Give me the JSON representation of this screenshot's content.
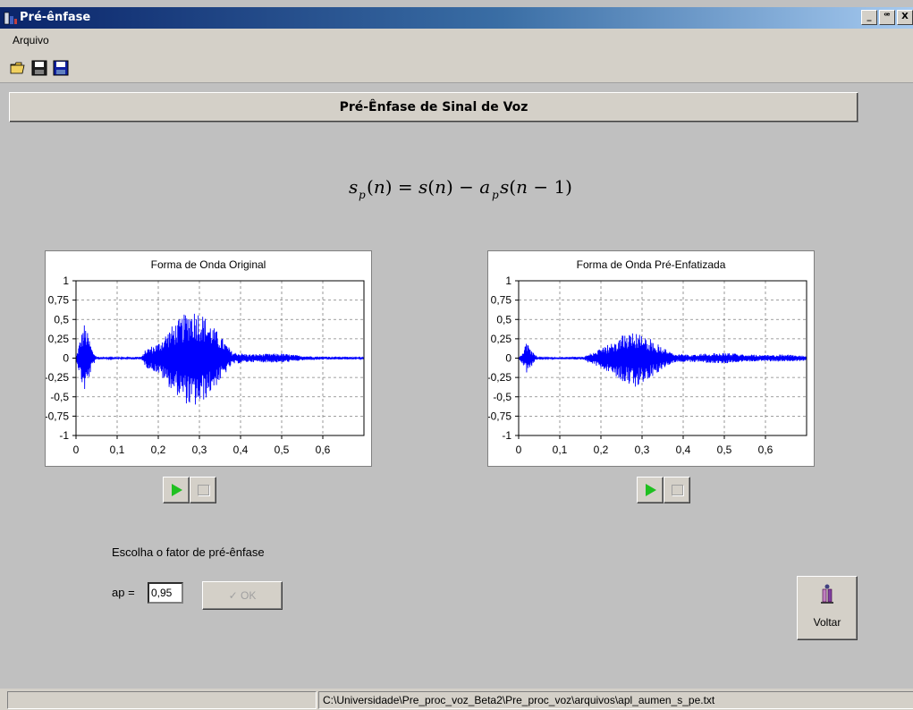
{
  "window": {
    "title": "Pré-ênfase",
    "controls": [
      "_",
      "ꟹ",
      "X"
    ]
  },
  "menu": {
    "items": [
      "Arquivo"
    ]
  },
  "toolbar": {
    "icons": [
      "open-folder-icon",
      "save-icon",
      "save-as-icon"
    ]
  },
  "header": {
    "title": "Pré-Ênfase de Sinal de Voz"
  },
  "formula": {
    "text": "s_p(n) = s(n) − a_p s(n−1)"
  },
  "charts": {
    "original": {
      "title": "Forma de Onda Original"
    },
    "preemph": {
      "title": "Forma de Onda Pré-Enfatizada"
    }
  },
  "chart_data": [
    {
      "type": "line",
      "title": "Forma de Onda Original",
      "xlim": [
        0,
        0.7
      ],
      "ylim": [
        -1,
        1
      ],
      "x_ticks": [
        "0",
        "0,1",
        "0,2",
        "0,3",
        "0,4",
        "0,5",
        "0,6"
      ],
      "y_ticks": [
        "1",
        "0,75",
        "0,5",
        "0,25",
        "0",
        "-0,25",
        "-0,5",
        "-0,75",
        "-1"
      ],
      "grid": true,
      "series": [
        {
          "color": "#0000ff"
        }
      ],
      "envelope": [
        [
          0.0,
          0.0
        ],
        [
          0.01,
          0.25
        ],
        [
          0.02,
          0.45
        ],
        [
          0.03,
          0.3
        ],
        [
          0.04,
          0.1
        ],
        [
          0.05,
          0.02
        ],
        [
          0.08,
          0.01
        ],
        [
          0.16,
          0.02
        ],
        [
          0.17,
          0.12
        ],
        [
          0.2,
          0.2
        ],
        [
          0.23,
          0.4
        ],
        [
          0.26,
          0.55
        ],
        [
          0.28,
          0.65
        ],
        [
          0.3,
          0.62
        ],
        [
          0.32,
          0.5
        ],
        [
          0.35,
          0.3
        ],
        [
          0.38,
          0.08
        ],
        [
          0.42,
          0.05
        ],
        [
          0.5,
          0.06
        ],
        [
          0.55,
          0.03
        ],
        [
          0.6,
          0.02
        ],
        [
          0.65,
          0.02
        ],
        [
          0.7,
          0.01
        ]
      ]
    },
    {
      "type": "line",
      "title": "Forma de Onda Pré-Enfatizada",
      "xlim": [
        0,
        0.7
      ],
      "ylim": [
        -1,
        1
      ],
      "x_ticks": [
        "0",
        "0,1",
        "0,2",
        "0,3",
        "0,4",
        "0,5",
        "0,6"
      ],
      "y_ticks": [
        "1",
        "0,75",
        "0,5",
        "0,25",
        "0",
        "-0,25",
        "-0,5",
        "-0,75",
        "-1"
      ],
      "grid": true,
      "series": [
        {
          "color": "#0000ff"
        }
      ],
      "envelope": [
        [
          0.0,
          0.0
        ],
        [
          0.01,
          0.1
        ],
        [
          0.02,
          0.2
        ],
        [
          0.03,
          0.12
        ],
        [
          0.04,
          0.04
        ],
        [
          0.05,
          0.01
        ],
        [
          0.16,
          0.02
        ],
        [
          0.17,
          0.06
        ],
        [
          0.2,
          0.12
        ],
        [
          0.23,
          0.22
        ],
        [
          0.26,
          0.32
        ],
        [
          0.28,
          0.38
        ],
        [
          0.3,
          0.33
        ],
        [
          0.32,
          0.25
        ],
        [
          0.35,
          0.15
        ],
        [
          0.38,
          0.05
        ],
        [
          0.42,
          0.05
        ],
        [
          0.5,
          0.07
        ],
        [
          0.55,
          0.05
        ],
        [
          0.6,
          0.04
        ],
        [
          0.65,
          0.05
        ],
        [
          0.7,
          0.03
        ]
      ]
    }
  ],
  "controls": {
    "choose_label": "Escolha o fator de pré-ênfase",
    "ap_label": "ap =",
    "ap_value": "0,95",
    "ok_label": "✓ OK"
  },
  "voltar": {
    "label": "Voltar"
  },
  "status": {
    "left": "",
    "path": "C:\\Universidade\\Pre_proc_voz_Beta2\\Pre_proc_voz\\arquivos\\apl_aumen_s_pe.txt"
  },
  "colors": {
    "waveform": "#0000ff",
    "play": "#20c020",
    "titlebar": "#0a246a"
  }
}
